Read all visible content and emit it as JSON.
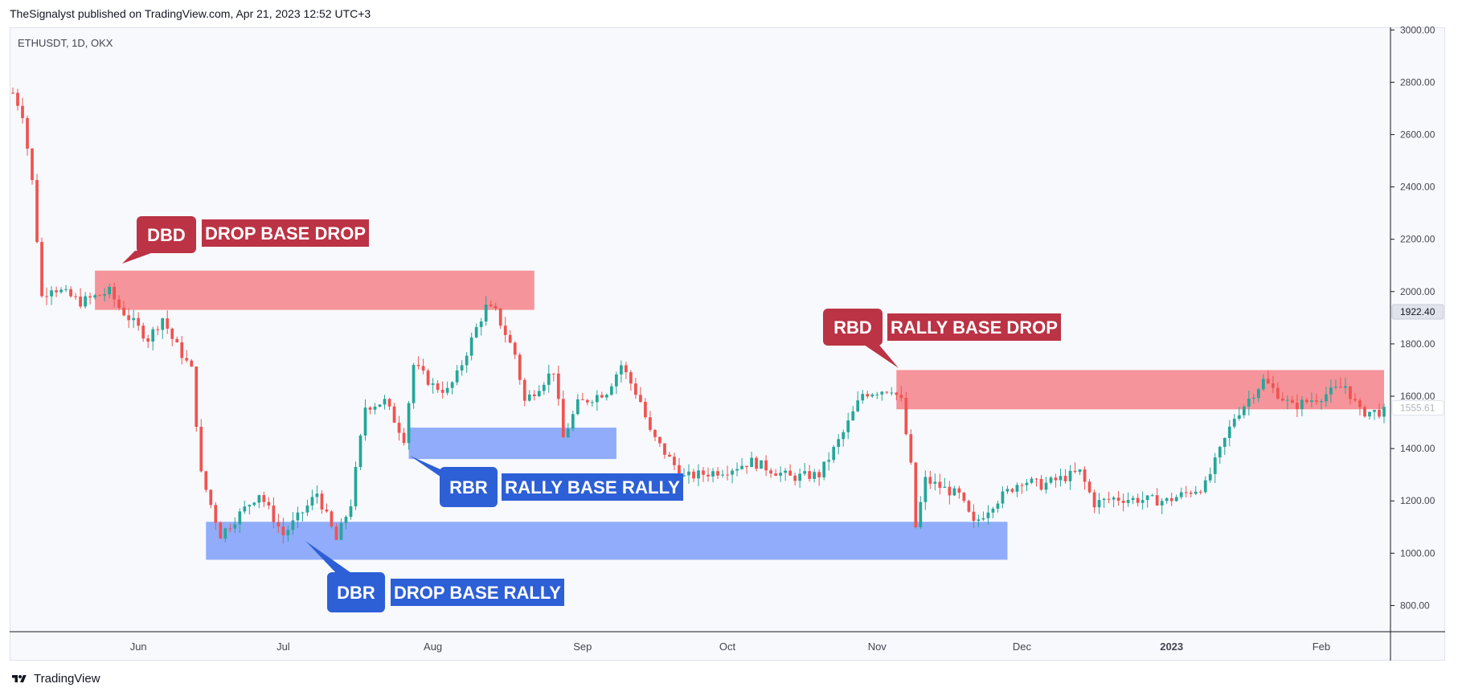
{
  "header": {
    "publisher_line": "TheSignalyst published on TradingView.com, Apr 21, 2023 12:52 UTC+3"
  },
  "footer": {
    "brand": "TradingView",
    "logo_icon": "tradingview-logo-icon"
  },
  "chart": {
    "symbol_line": "ETHUSDT, 1D, OKX"
  },
  "colors": {
    "bull": "#26a69a",
    "bear": "#ef5350",
    "supply_zone": "#f5949a",
    "demand_zone": "#90acfa",
    "supply_label": "#bb3344",
    "demand_label": "#2d5fd6",
    "background": "#f8f9fd",
    "axis_text": "#434651"
  },
  "chart_data": {
    "type": "candlestick",
    "title": "ETHUSDT, 1D, OKX",
    "x_axis": {
      "tick_labels": [
        "Jun",
        "Jul",
        "Aug",
        "Sep",
        "Oct",
        "Nov",
        "Dec",
        "2023",
        "Feb"
      ],
      "tick_dates": [
        "2022-06-01",
        "2022-07-01",
        "2022-08-01",
        "2022-09-01",
        "2022-10-01",
        "2022-11-01",
        "2022-12-01",
        "2023-01-01",
        "2023-02-01"
      ],
      "range": [
        "2022-05-06",
        "2023-02-14"
      ]
    },
    "y_axis": {
      "tick_labels": [
        "800.00",
        "1000.00",
        "1200.00",
        "1400.00",
        "1600.00",
        "1800.00",
        "2000.00",
        "2200.00",
        "2400.00",
        "2600.00",
        "2800.00",
        "3000.00"
      ],
      "range": [
        700,
        3010
      ],
      "position": "right"
    },
    "price_markers": [
      {
        "value": 1922.4,
        "label": "1922.40",
        "style": "dark"
      },
      {
        "value": 1555.61,
        "label": "1555.61",
        "style": "light"
      }
    ],
    "waypoints": [
      [
        "2022-05-06",
        2760
      ],
      [
        "2022-05-08",
        2680
      ],
      [
        "2022-05-10",
        2420
      ],
      [
        "2022-05-12",
        1980
      ],
      [
        "2022-05-14",
        2020
      ],
      [
        "2022-05-20",
        1960
      ],
      [
        "2022-05-26",
        2000
      ],
      [
        "2022-05-28",
        1940
      ],
      [
        "2022-06-03",
        1820
      ],
      [
        "2022-06-06",
        1900
      ],
      [
        "2022-06-08",
        1820
      ],
      [
        "2022-06-12",
        1700
      ],
      [
        "2022-06-14",
        1300
      ],
      [
        "2022-06-18",
        1070
      ],
      [
        "2022-06-20",
        1110
      ],
      [
        "2022-06-26",
        1230
      ],
      [
        "2022-07-01",
        1070
      ],
      [
        "2022-07-06",
        1180
      ],
      [
        "2022-07-08",
        1230
      ],
      [
        "2022-07-12",
        1050
      ],
      [
        "2022-07-15",
        1190
      ],
      [
        "2022-07-18",
        1560
      ],
      [
        "2022-07-22",
        1580
      ],
      [
        "2022-07-26",
        1440
      ],
      [
        "2022-07-28",
        1720
      ],
      [
        "2022-08-01",
        1640
      ],
      [
        "2022-08-04",
        1620
      ],
      [
        "2022-08-06",
        1680
      ],
      [
        "2022-08-10",
        1860
      ],
      [
        "2022-08-12",
        1940
      ],
      [
        "2022-08-14",
        1920
      ],
      [
        "2022-08-18",
        1760
      ],
      [
        "2022-08-20",
        1580
      ],
      [
        "2022-08-26",
        1700
      ],
      [
        "2022-08-28",
        1440
      ],
      [
        "2022-08-31",
        1570
      ],
      [
        "2022-09-06",
        1620
      ],
      [
        "2022-09-09",
        1720
      ],
      [
        "2022-09-13",
        1580
      ],
      [
        "2022-09-15",
        1460
      ],
      [
        "2022-09-19",
        1360
      ],
      [
        "2022-09-22",
        1290
      ],
      [
        "2022-10-01",
        1320
      ],
      [
        "2022-10-06",
        1350
      ],
      [
        "2022-10-14",
        1290
      ],
      [
        "2022-10-20",
        1300
      ],
      [
        "2022-10-25",
        1460
      ],
      [
        "2022-10-29",
        1610
      ],
      [
        "2022-11-04",
        1630
      ],
      [
        "2022-11-06",
        1580
      ],
      [
        "2022-11-08",
        1330
      ],
      [
        "2022-11-09",
        1100
      ],
      [
        "2022-11-11",
        1280
      ],
      [
        "2022-11-18",
        1220
      ],
      [
        "2022-11-21",
        1110
      ],
      [
        "2022-11-25",
        1190
      ],
      [
        "2022-12-01",
        1280
      ],
      [
        "2022-12-05",
        1260
      ],
      [
        "2022-12-13",
        1310
      ],
      [
        "2022-12-16",
        1190
      ],
      [
        "2022-12-20",
        1210
      ],
      [
        "2022-12-31",
        1200
      ],
      [
        "2023-01-08",
        1260
      ],
      [
        "2023-01-14",
        1520
      ],
      [
        "2023-01-20",
        1660
      ],
      [
        "2023-01-26",
        1560
      ],
      [
        "2023-02-01",
        1600
      ],
      [
        "2023-02-06",
        1640
      ],
      [
        "2023-02-09",
        1540
      ],
      [
        "2023-02-14",
        1540
      ]
    ],
    "zones": [
      {
        "id": "dbd",
        "kind": "supply",
        "start": "2022-05-23",
        "end": "2022-08-22",
        "low": 1930,
        "high": 2080
      },
      {
        "id": "rbr",
        "kind": "demand",
        "start": "2022-07-27",
        "end": "2022-09-08",
        "low": 1360,
        "high": 1480
      },
      {
        "id": "dbr",
        "kind": "demand",
        "start": "2022-06-15",
        "end": "2022-11-28",
        "low": 975,
        "high": 1120
      },
      {
        "id": "rbd",
        "kind": "supply",
        "start": "2022-11-05",
        "end": "2023-02-14",
        "low": 1550,
        "high": 1700
      }
    ],
    "annotations": [
      {
        "id": "dbd",
        "badge": "DBD",
        "text": "DROP BASE DROP",
        "kind": "supply"
      },
      {
        "id": "rbd",
        "badge": "RBD",
        "text": "RALLY BASE DROP",
        "kind": "supply"
      },
      {
        "id": "rbr",
        "badge": "RBR",
        "text": "RALLY BASE RALLY",
        "kind": "demand"
      },
      {
        "id": "dbr",
        "badge": "DBR",
        "text": "DROP BASE RALLY",
        "kind": "demand"
      }
    ]
  }
}
